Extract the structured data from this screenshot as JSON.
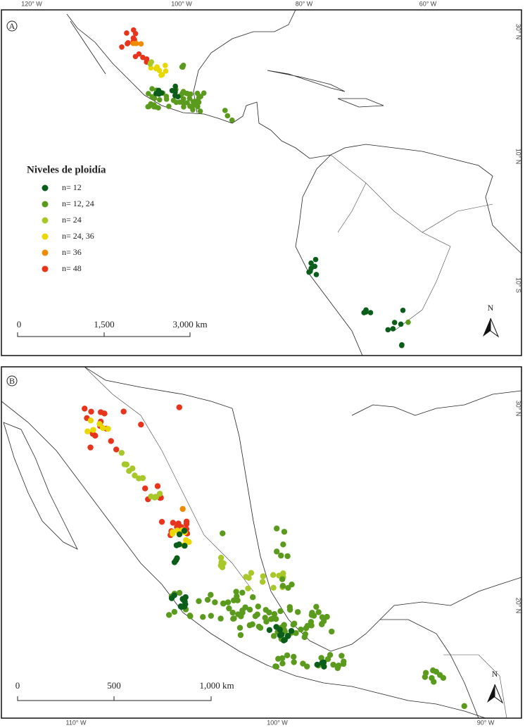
{
  "panels": [
    {
      "label": "A",
      "top_labels": [
        "120° W",
        "100° W",
        "80° W",
        "60° W"
      ],
      "right_labels": [
        "30° N",
        "10° N",
        "10° S"
      ],
      "scale_labels": [
        "0",
        "1,500",
        "3,000 km"
      ],
      "north": "N"
    },
    {
      "label": "B",
      "bottom_labels": [
        "110° W",
        "100° W",
        "90° W"
      ],
      "right_labels": [
        "30° N",
        "20° N"
      ],
      "scale_labels": [
        "0",
        "500",
        "1,000 km"
      ],
      "north": "N"
    }
  ],
  "legend": {
    "title": "Niveles de ploidía",
    "items": [
      {
        "label": "n= 12",
        "color": "#0b5e1a"
      },
      {
        "label": "n= 12, 24",
        "color": "#5a9a1c"
      },
      {
        "label": "n= 24",
        "color": "#a8c82a"
      },
      {
        "label": "n= 24, 36",
        "color": "#e8d800"
      },
      {
        "label": "n= 36",
        "color": "#f08a00"
      },
      {
        "label": "n= 48",
        "color": "#e8341c"
      }
    ]
  }
}
